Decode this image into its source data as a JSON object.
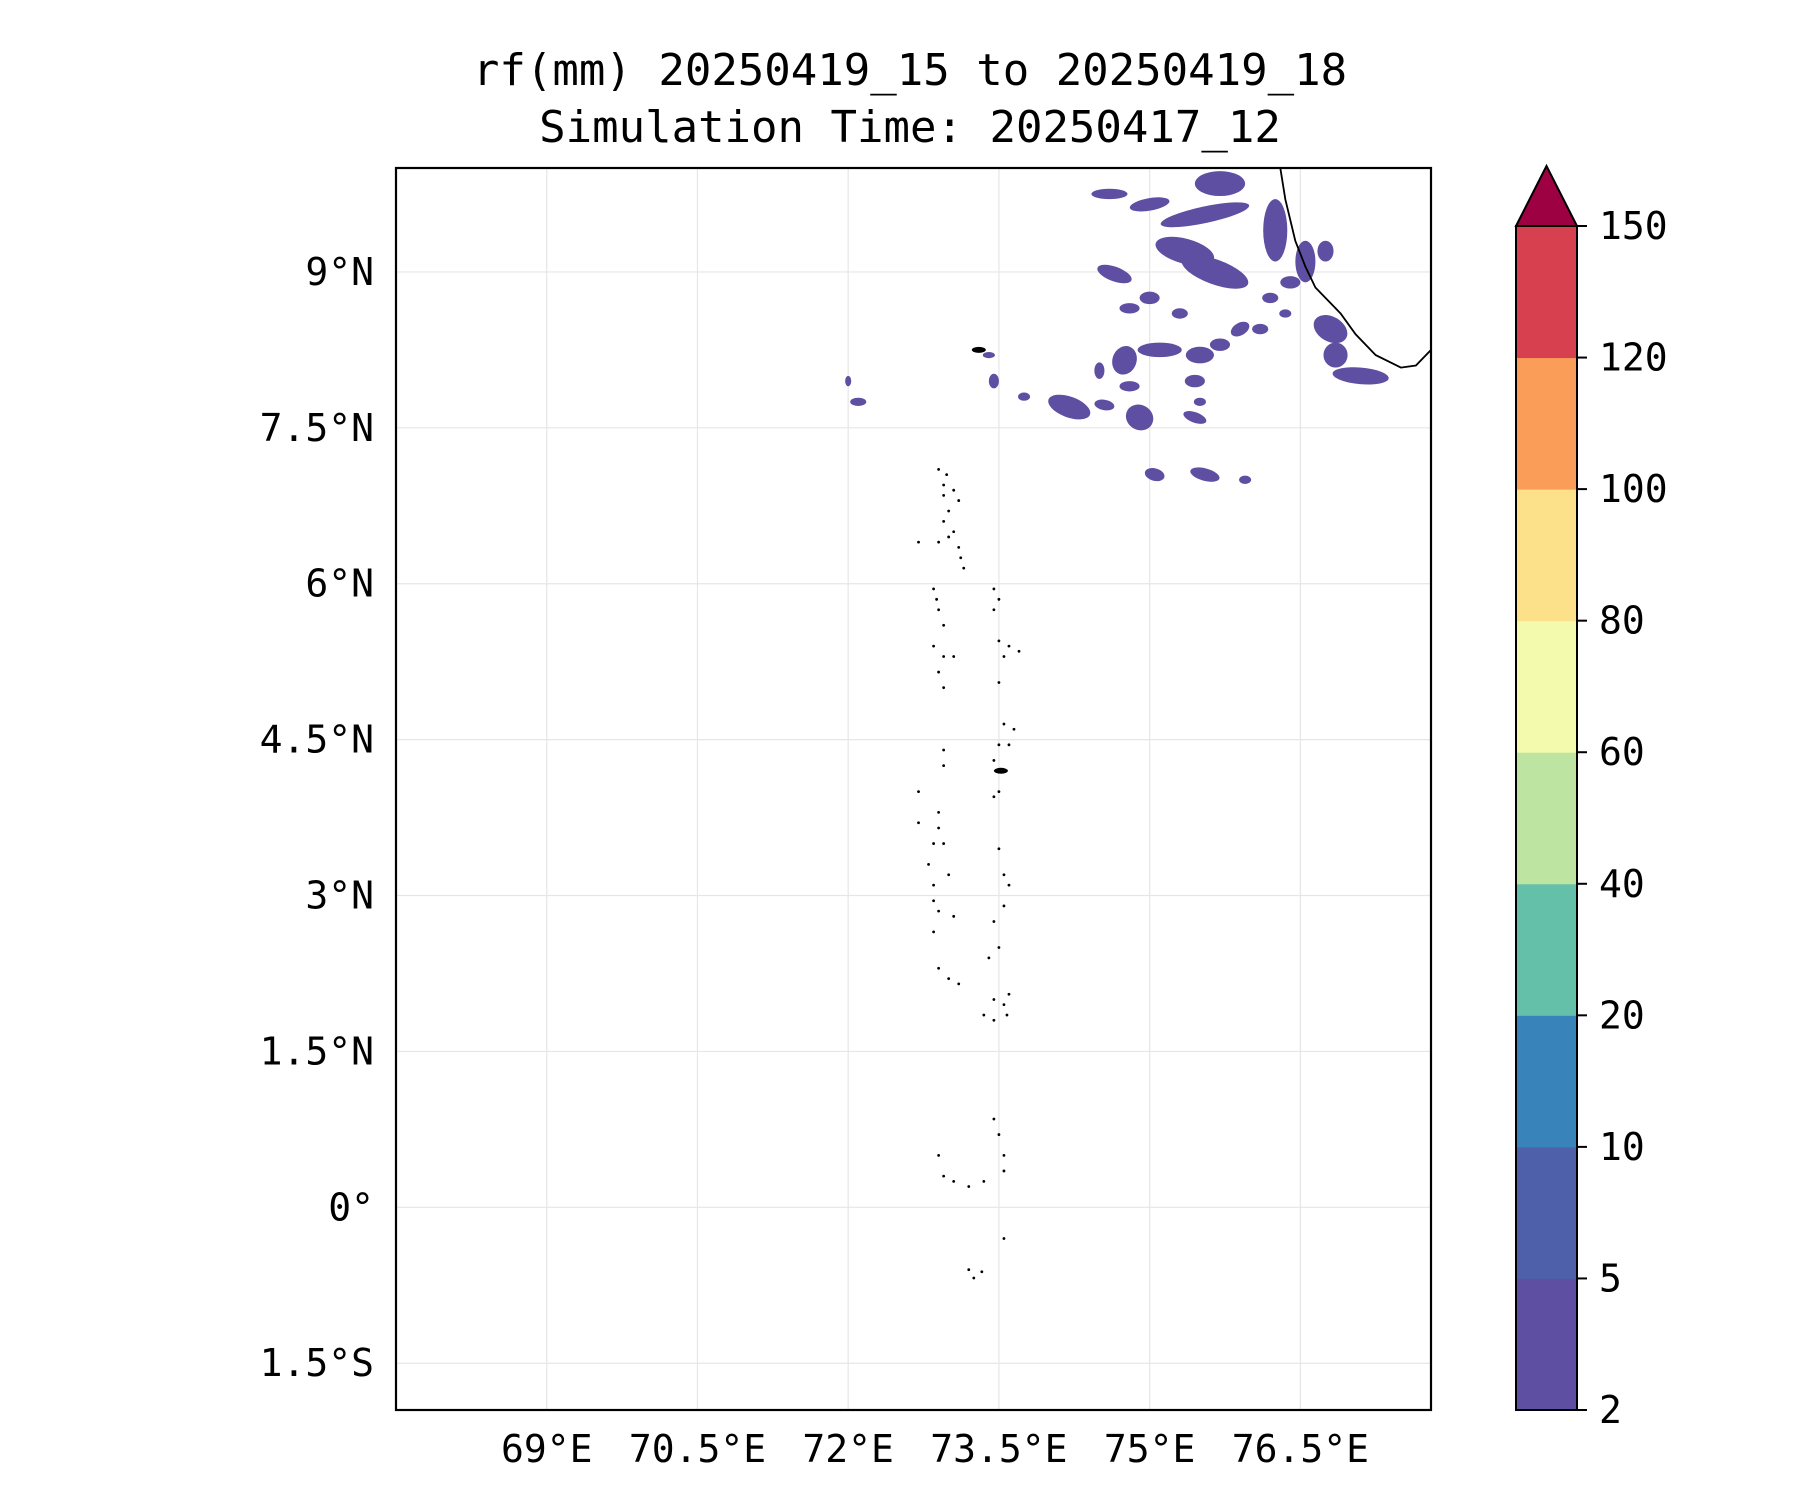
{
  "title": {
    "line1": "rf(mm) 20250419_15 to 20250419_18",
    "line2": "Simulation Time: 20250417_12"
  },
  "chart_data": {
    "type": "contourf-map",
    "variable": "rf(mm)",
    "period_start": "20250419_15",
    "period_end": "20250419_18",
    "simulation_time": "20250417_12",
    "xlim": [
      67.5,
      77.8
    ],
    "ylim": [
      -1.95,
      10.0
    ],
    "x_ticks": [
      {
        "value": 69,
        "label": "69°E"
      },
      {
        "value": 70.5,
        "label": "70.5°E"
      },
      {
        "value": 72,
        "label": "72°E"
      },
      {
        "value": 73.5,
        "label": "73.5°E"
      },
      {
        "value": 75,
        "label": "75°E"
      },
      {
        "value": 76.5,
        "label": "76.5°E"
      }
    ],
    "y_ticks": [
      {
        "value": 9,
        "label": "9°N"
      },
      {
        "value": 7.5,
        "label": "7.5°N"
      },
      {
        "value": 6,
        "label": "6°N"
      },
      {
        "value": 4.5,
        "label": "4.5°N"
      },
      {
        "value": 3,
        "label": "3°N"
      },
      {
        "value": 1.5,
        "label": "1.5°N"
      },
      {
        "value": 0,
        "label": "0°"
      },
      {
        "value": -1.5,
        "label": "1.5°S"
      }
    ],
    "grid": true,
    "colorbar": {
      "levels": [
        2,
        5,
        10,
        20,
        40,
        60,
        80,
        100,
        120,
        150
      ],
      "labels": [
        "2",
        "5",
        "10",
        "20",
        "40",
        "60",
        "80",
        "100",
        "120",
        "150"
      ],
      "colors": [
        "#5e4fa2",
        "#4f60aa",
        "#3884ba",
        "#64c0a8",
        "#bde4a0",
        "#f4faad",
        "#fde18a",
        "#f99d59",
        "#d7404f"
      ],
      "extend_color": "#9e0142",
      "extend": "max"
    },
    "rain_regions": [
      {
        "lon": 74.6,
        "lat": 9.75,
        "rx": 0.18,
        "ry": 0.05,
        "rot": 0
      },
      {
        "lon": 75.0,
        "lat": 9.65,
        "rx": 0.2,
        "ry": 0.06,
        "rot": -10
      },
      {
        "lon": 75.55,
        "lat": 9.55,
        "rx": 0.45,
        "ry": 0.08,
        "rot": -12
      },
      {
        "lon": 75.7,
        "lat": 9.85,
        "rx": 0.25,
        "ry": 0.12,
        "rot": 0
      },
      {
        "lon": 75.35,
        "lat": 9.2,
        "rx": 0.3,
        "ry": 0.12,
        "rot": 15
      },
      {
        "lon": 75.65,
        "lat": 9.0,
        "rx": 0.35,
        "ry": 0.12,
        "rot": 20
      },
      {
        "lon": 74.65,
        "lat": 8.98,
        "rx": 0.18,
        "ry": 0.07,
        "rot": 20
      },
      {
        "lon": 75.0,
        "lat": 8.75,
        "rx": 0.1,
        "ry": 0.06,
        "rot": 0
      },
      {
        "lon": 75.3,
        "lat": 8.6,
        "rx": 0.08,
        "ry": 0.05,
        "rot": 0
      },
      {
        "lon": 74.8,
        "lat": 8.65,
        "rx": 0.1,
        "ry": 0.05,
        "rot": 0
      },
      {
        "lon": 75.9,
        "lat": 8.45,
        "rx": 0.1,
        "ry": 0.06,
        "rot": -30
      },
      {
        "lon": 75.7,
        "lat": 8.3,
        "rx": 0.1,
        "ry": 0.06,
        "rot": 0
      },
      {
        "lon": 75.5,
        "lat": 8.2,
        "rx": 0.14,
        "ry": 0.08,
        "rot": 0
      },
      {
        "lon": 75.45,
        "lat": 7.95,
        "rx": 0.1,
        "ry": 0.06,
        "rot": 0
      },
      {
        "lon": 75.1,
        "lat": 8.25,
        "rx": 0.22,
        "ry": 0.07,
        "rot": 0
      },
      {
        "lon": 74.75,
        "lat": 8.15,
        "rx": 0.12,
        "ry": 0.14,
        "rot": 20
      },
      {
        "lon": 74.8,
        "lat": 7.9,
        "rx": 0.1,
        "ry": 0.05,
        "rot": 0
      },
      {
        "lon": 74.5,
        "lat": 8.05,
        "rx": 0.05,
        "ry": 0.08,
        "rot": 0
      },
      {
        "lon": 74.2,
        "lat": 7.7,
        "rx": 0.22,
        "ry": 0.1,
        "rot": 20
      },
      {
        "lon": 74.55,
        "lat": 7.72,
        "rx": 0.1,
        "ry": 0.05,
        "rot": 10
      },
      {
        "lon": 74.9,
        "lat": 7.6,
        "rx": 0.14,
        "ry": 0.12,
        "rot": 30
      },
      {
        "lon": 75.45,
        "lat": 7.6,
        "rx": 0.12,
        "ry": 0.05,
        "rot": 20
      },
      {
        "lon": 75.05,
        "lat": 7.05,
        "rx": 0.1,
        "ry": 0.06,
        "rot": 15
      },
      {
        "lon": 75.55,
        "lat": 7.05,
        "rx": 0.15,
        "ry": 0.06,
        "rot": 15
      },
      {
        "lon": 75.95,
        "lat": 7.0,
        "rx": 0.06,
        "ry": 0.04,
        "rot": 0
      },
      {
        "lon": 73.45,
        "lat": 7.95,
        "rx": 0.05,
        "ry": 0.07,
        "rot": 0
      },
      {
        "lon": 73.75,
        "lat": 7.8,
        "rx": 0.06,
        "ry": 0.04,
        "rot": 0
      },
      {
        "lon": 73.4,
        "lat": 8.2,
        "rx": 0.06,
        "ry": 0.03,
        "rot": 0
      },
      {
        "lon": 72.1,
        "lat": 7.75,
        "rx": 0.08,
        "ry": 0.04,
        "rot": 0
      },
      {
        "lon": 72.0,
        "lat": 7.95,
        "rx": 0.03,
        "ry": 0.05,
        "rot": 0
      },
      {
        "lon": 76.8,
        "lat": 8.45,
        "rx": 0.18,
        "ry": 0.12,
        "rot": 30
      },
      {
        "lon": 77.1,
        "lat": 8.0,
        "rx": 0.28,
        "ry": 0.08,
        "rot": 5
      },
      {
        "lon": 76.85,
        "lat": 8.2,
        "rx": 0.12,
        "ry": 0.12,
        "rot": 0
      },
      {
        "lon": 76.25,
        "lat": 9.4,
        "rx": 0.12,
        "ry": 0.3,
        "rot": 0
      },
      {
        "lon": 76.55,
        "lat": 9.1,
        "rx": 0.1,
        "ry": 0.2,
        "rot": 0
      },
      {
        "lon": 76.4,
        "lat": 8.9,
        "rx": 0.1,
        "ry": 0.06,
        "rot": 0
      },
      {
        "lon": 76.2,
        "lat": 8.75,
        "rx": 0.08,
        "ry": 0.05,
        "rot": 0
      },
      {
        "lon": 76.1,
        "lat": 8.45,
        "rx": 0.08,
        "ry": 0.05,
        "rot": 0
      },
      {
        "lon": 76.75,
        "lat": 9.2,
        "rx": 0.08,
        "ry": 0.1,
        "rot": 0
      },
      {
        "lon": 76.35,
        "lat": 8.6,
        "rx": 0.06,
        "ry": 0.04,
        "rot": 0
      },
      {
        "lon": 75.5,
        "lat": 7.75,
        "rx": 0.06,
        "ry": 0.04,
        "rot": 0
      }
    ],
    "coastline_india": [
      [
        76.3,
        10.0
      ],
      [
        76.35,
        9.7
      ],
      [
        76.45,
        9.3
      ],
      [
        76.55,
        9.05
      ],
      [
        76.65,
        8.85
      ],
      [
        76.9,
        8.6
      ],
      [
        77.05,
        8.4
      ],
      [
        77.25,
        8.2
      ],
      [
        77.5,
        8.08
      ],
      [
        77.65,
        8.1
      ],
      [
        77.8,
        8.25
      ]
    ],
    "maldives_islands": [
      [
        72.9,
        7.1
      ],
      [
        72.98,
        7.05
      ],
      [
        72.95,
        6.95
      ],
      [
        73.05,
        6.9
      ],
      [
        72.95,
        6.85
      ],
      [
        73.1,
        6.8
      ],
      [
        73.0,
        6.7
      ],
      [
        72.95,
        6.6
      ],
      [
        73.05,
        6.5
      ],
      [
        72.9,
        6.4
      ],
      [
        73.0,
        6.45
      ],
      [
        73.1,
        6.35
      ],
      [
        73.12,
        6.25
      ],
      [
        73.15,
        6.15
      ],
      [
        72.7,
        6.4
      ],
      [
        72.85,
        5.95
      ],
      [
        72.88,
        5.85
      ],
      [
        72.9,
        5.75
      ],
      [
        72.95,
        5.6
      ],
      [
        72.85,
        5.4
      ],
      [
        72.95,
        5.3
      ],
      [
        73.05,
        5.3
      ],
      [
        72.9,
        5.15
      ],
      [
        72.95,
        5.0
      ],
      [
        73.45,
        5.95
      ],
      [
        73.5,
        5.85
      ],
      [
        73.45,
        5.75
      ],
      [
        73.5,
        5.45
      ],
      [
        73.6,
        5.4
      ],
      [
        73.7,
        5.35
      ],
      [
        73.55,
        5.3
      ],
      [
        73.5,
        5.05
      ],
      [
        73.55,
        4.65
      ],
      [
        73.65,
        4.6
      ],
      [
        73.6,
        4.45
      ],
      [
        73.5,
        4.45
      ],
      [
        73.45,
        4.3
      ],
      [
        73.55,
        4.2
      ],
      [
        73.5,
        4.0
      ],
      [
        73.45,
        3.95
      ],
      [
        72.95,
        4.4
      ],
      [
        72.95,
        4.25
      ],
      [
        72.7,
        4.0
      ],
      [
        72.7,
        3.7
      ],
      [
        72.9,
        3.8
      ],
      [
        72.9,
        3.65
      ],
      [
        72.85,
        3.5
      ],
      [
        72.95,
        3.5
      ],
      [
        72.8,
        3.3
      ],
      [
        73.0,
        3.2
      ],
      [
        72.85,
        3.1
      ],
      [
        72.85,
        2.95
      ],
      [
        72.9,
        2.85
      ],
      [
        72.85,
        2.65
      ],
      [
        73.05,
        2.8
      ],
      [
        73.5,
        3.45
      ],
      [
        73.55,
        3.2
      ],
      [
        73.6,
        3.1
      ],
      [
        73.55,
        2.9
      ],
      [
        73.45,
        2.75
      ],
      [
        73.5,
        2.5
      ],
      [
        73.4,
        2.4
      ],
      [
        72.9,
        2.3
      ],
      [
        73.0,
        2.2
      ],
      [
        73.1,
        2.15
      ],
      [
        73.45,
        2.0
      ],
      [
        73.55,
        1.95
      ],
      [
        73.6,
        2.05
      ],
      [
        73.58,
        1.85
      ],
      [
        73.45,
        1.8
      ],
      [
        73.35,
        1.85
      ],
      [
        73.45,
        0.85
      ],
      [
        73.5,
        0.7
      ],
      [
        73.55,
        0.5
      ],
      [
        72.9,
        0.5
      ],
      [
        72.95,
        0.3
      ],
      [
        73.05,
        0.25
      ],
      [
        73.2,
        0.2
      ],
      [
        73.35,
        0.25
      ],
      [
        73.55,
        0.35
      ],
      [
        73.55,
        -0.3
      ],
      [
        73.2,
        -0.6
      ],
      [
        73.25,
        -0.68
      ],
      [
        73.33,
        -0.62
      ]
    ],
    "maldives_atolls_solid": [
      [
        73.3,
        8.25
      ],
      [
        73.52,
        4.2
      ]
    ]
  }
}
